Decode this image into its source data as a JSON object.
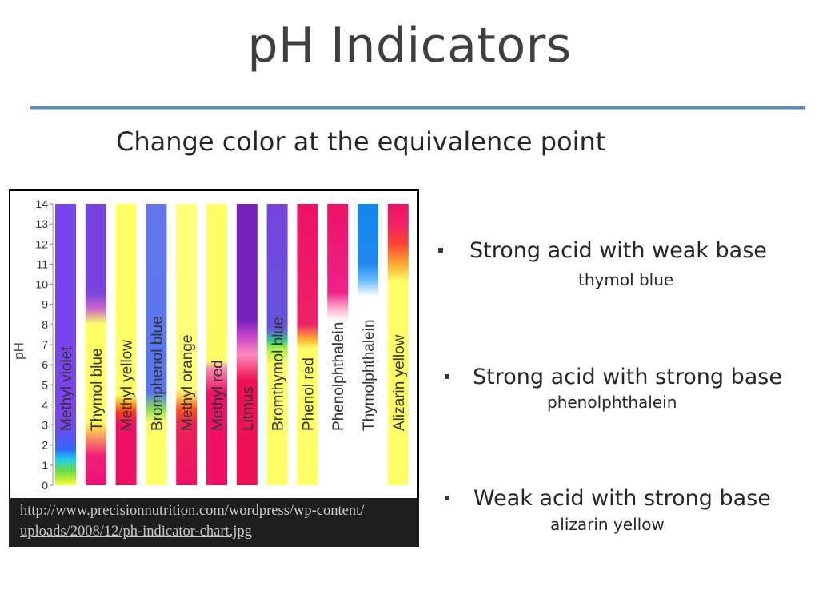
{
  "slide": {
    "title": "pH Indicators",
    "subtitle": "Change color at the equivalence point",
    "accent_rule_color": "#5b8fbf"
  },
  "figure": {
    "caption_line1": "http://www.precisionnutrition.com/wordpress/wp-content/",
    "caption_line2": "uploads/2008/12/ph-indicator-chart.jpg"
  },
  "chart_data": {
    "type": "bar",
    "ylabel": "pH",
    "ylim": [
      0,
      14
    ],
    "yticks": [
      "0",
      "1",
      "2",
      "3",
      "4",
      "5",
      "6",
      "7",
      "8",
      "9",
      "10",
      "11",
      "12",
      "13",
      "14"
    ],
    "indicators": [
      {
        "name": "Methyl violet",
        "stops": [
          [
            0,
            "#ffff33"
          ],
          [
            0.7,
            "#66dd44"
          ],
          [
            1.3,
            "#22ccee"
          ],
          [
            1.8,
            "#3366ff"
          ],
          [
            3,
            "#7744ee"
          ],
          [
            14,
            "#7744ee"
          ]
        ]
      },
      {
        "name": "Thymol blue",
        "stops": [
          [
            0,
            "#ee1177"
          ],
          [
            1.5,
            "#ee2277"
          ],
          [
            2.8,
            "#ffcc55"
          ],
          [
            3.2,
            "#ffff66"
          ],
          [
            8,
            "#ffff66"
          ],
          [
            8.8,
            "#cc66cc"
          ],
          [
            9.6,
            "#7744dd"
          ],
          [
            14,
            "#7744dd"
          ]
        ]
      },
      {
        "name": "Methyl yellow",
        "stops": [
          [
            0,
            "#ee1166"
          ],
          [
            3,
            "#ee1166"
          ],
          [
            3.6,
            "#ff3322"
          ],
          [
            4.1,
            "#ffaa22"
          ],
          [
            4.5,
            "#ffff66"
          ],
          [
            14,
            "#ffff66"
          ]
        ]
      },
      {
        "name": "Bromphenol blue",
        "stops": [
          [
            0,
            "#ffff66"
          ],
          [
            3.1,
            "#ffff66"
          ],
          [
            3.8,
            "#88dd55"
          ],
          [
            4.6,
            "#5577ee"
          ],
          [
            14,
            "#6677ee"
          ]
        ]
      },
      {
        "name": "Methyl orange",
        "stops": [
          [
            0,
            "#ee1166"
          ],
          [
            3.1,
            "#ee2255"
          ],
          [
            3.8,
            "#ff5522"
          ],
          [
            4.4,
            "#ffcc55"
          ],
          [
            4.8,
            "#ffff77"
          ],
          [
            14,
            "#ffff77"
          ]
        ]
      },
      {
        "name": "Methyl red",
        "stops": [
          [
            0,
            "#ee1166"
          ],
          [
            4.6,
            "#ee1166"
          ],
          [
            5.8,
            "#ff88aa"
          ],
          [
            6.2,
            "#ffff66"
          ],
          [
            14,
            "#ffff66"
          ]
        ]
      },
      {
        "name": "Litmus",
        "stops": [
          [
            0,
            "#ee1155"
          ],
          [
            5.2,
            "#ee1155"
          ],
          [
            6.5,
            "#ff88bb"
          ],
          [
            7.4,
            "#cc44cc"
          ],
          [
            8.2,
            "#7722bb"
          ],
          [
            14,
            "#7722bb"
          ]
        ]
      },
      {
        "name": "Bromthymol blue",
        "stops": [
          [
            0,
            "#ffff66"
          ],
          [
            6,
            "#ffff66"
          ],
          [
            6.8,
            "#aaee44"
          ],
          [
            7.2,
            "#33cc88"
          ],
          [
            7.8,
            "#6655dd"
          ],
          [
            14,
            "#7744dd"
          ]
        ]
      },
      {
        "name": "Phenol red",
        "stops": [
          [
            0,
            "#ffff66"
          ],
          [
            6.8,
            "#ffff66"
          ],
          [
            7.2,
            "#ffbb33"
          ],
          [
            8,
            "#ee2266"
          ],
          [
            14,
            "#ee1166"
          ]
        ]
      },
      {
        "name": "Phenolphthalein",
        "stops": [
          [
            0,
            "#ffffff"
          ],
          [
            8.2,
            "#ffffff"
          ],
          [
            8.8,
            "#ffaacc"
          ],
          [
            9.6,
            "#ee2288"
          ],
          [
            14,
            "#ee1166"
          ]
        ]
      },
      {
        "name": "Thymolphthalein",
        "stops": [
          [
            0,
            "#ffffff"
          ],
          [
            9.4,
            "#ffffff"
          ],
          [
            10.2,
            "#66bbff"
          ],
          [
            11,
            "#2288ee"
          ],
          [
            14,
            "#1188ee"
          ]
        ]
      },
      {
        "name": "Alizarin yellow",
        "stops": [
          [
            0,
            "#ffff66"
          ],
          [
            10.1,
            "#ffff66"
          ],
          [
            11,
            "#ffaa33"
          ],
          [
            12,
            "#ff4433"
          ],
          [
            13,
            "#ee2266"
          ],
          [
            14,
            "#ee1166"
          ]
        ]
      }
    ]
  },
  "bullets": [
    {
      "text": "Strong acid with weak base",
      "sub": "thymol blue"
    },
    {
      "text": "Strong acid with strong base",
      "sub": "phenolphthalein"
    },
    {
      "text": "Weak acid with strong base",
      "sub": "alizarin yellow"
    }
  ]
}
